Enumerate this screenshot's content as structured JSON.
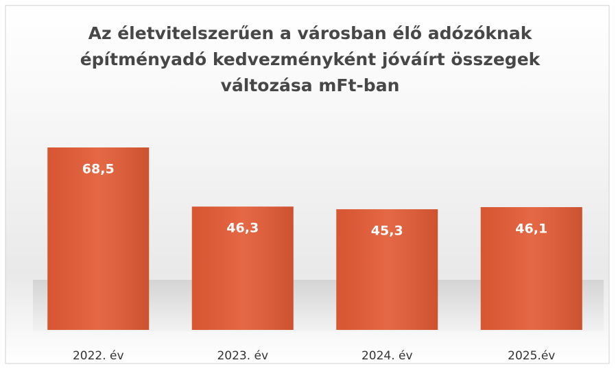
{
  "chart_data": {
    "type": "bar",
    "title": [
      "Az életvitelszerűen a városban élő adózóknak",
      "építményadó kedvezményként jóváírt összegek",
      "változása mFt-ban"
    ],
    "categories": [
      "2022. év",
      "2023. év",
      "2024. év",
      "2025.év"
    ],
    "values": [
      68.5,
      46.3,
      45.3,
      46.1
    ],
    "value_labels": [
      "68,5",
      "46,3",
      "45,3",
      "46,1"
    ],
    "color": "#e35b35"
  }
}
